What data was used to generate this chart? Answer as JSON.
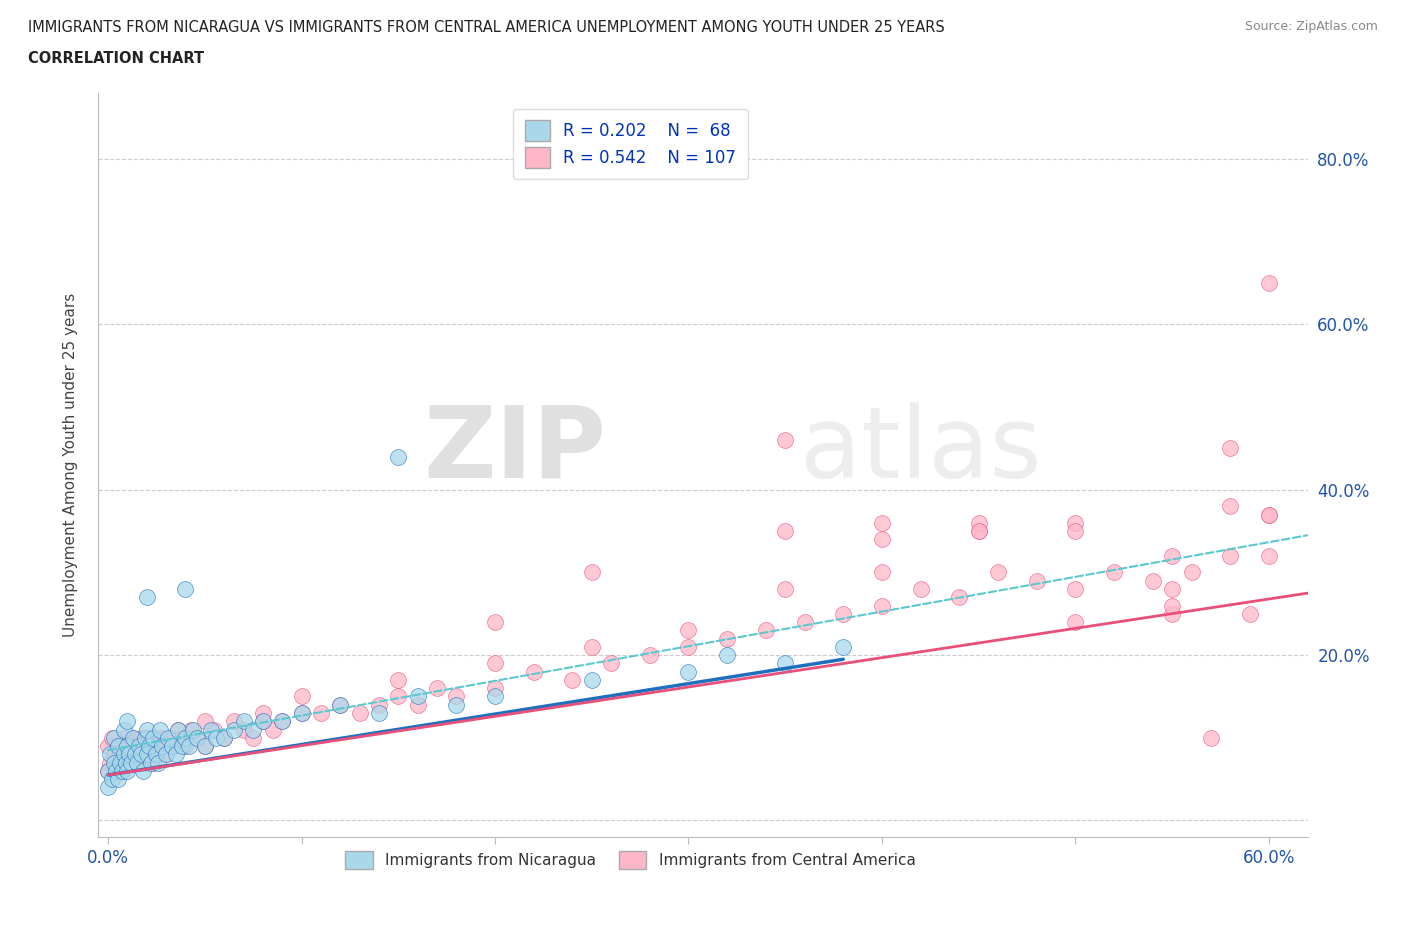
{
  "title_line1": "IMMIGRANTS FROM NICARAGUA VS IMMIGRANTS FROM CENTRAL AMERICA UNEMPLOYMENT AMONG YOUTH UNDER 25 YEARS",
  "title_line2": "CORRELATION CHART",
  "source": "Source: ZipAtlas.com",
  "ylabel": "Unemployment Among Youth under 25 years",
  "xlim": [
    -0.005,
    0.62
  ],
  "ylim": [
    -0.02,
    0.88
  ],
  "xticks": [
    0.0,
    0.1,
    0.2,
    0.3,
    0.4,
    0.5,
    0.6
  ],
  "ytick_positions": [
    0.0,
    0.2,
    0.4,
    0.6,
    0.8
  ],
  "legend_R1": "R = 0.202",
  "legend_N1": "N =  68",
  "legend_R2": "R = 0.542",
  "legend_N2": "N = 107",
  "color_nicaragua": "#A8D8EA",
  "color_nicaragua_line": "#1F6FBF",
  "color_central": "#FFB6C8",
  "color_central_line": "#E8507A",
  "color_dashed_line": "#5BC8D0",
  "watermark_zip": "ZIP",
  "watermark_atlas": "atlas",
  "background_color": "#FFFFFF",
  "nic_line_x": [
    0.0,
    0.38
  ],
  "nic_line_y": [
    0.055,
    0.195
  ],
  "cent_line_x": [
    0.0,
    0.62
  ],
  "cent_line_y": [
    0.055,
    0.275
  ],
  "dash_line_x": [
    0.0,
    0.62
  ],
  "dash_line_y": [
    0.085,
    0.345
  ],
  "scatter_nic_x": [
    0.0,
    0.0,
    0.001,
    0.002,
    0.003,
    0.003,
    0.004,
    0.005,
    0.005,
    0.006,
    0.007,
    0.008,
    0.008,
    0.009,
    0.01,
    0.01,
    0.01,
    0.011,
    0.012,
    0.013,
    0.014,
    0.015,
    0.016,
    0.017,
    0.018,
    0.019,
    0.02,
    0.02,
    0.021,
    0.022,
    0.023,
    0.025,
    0.026,
    0.027,
    0.028,
    0.03,
    0.031,
    0.033,
    0.035,
    0.036,
    0.038,
    0.04,
    0.042,
    0.044,
    0.046,
    0.05,
    0.053,
    0.056,
    0.06,
    0.065,
    0.07,
    0.075,
    0.08,
    0.09,
    0.1,
    0.12,
    0.14,
    0.16,
    0.18,
    0.2,
    0.25,
    0.3,
    0.32,
    0.35,
    0.38,
    0.15,
    0.02,
    0.04
  ],
  "scatter_nic_y": [
    0.04,
    0.06,
    0.08,
    0.05,
    0.07,
    0.1,
    0.06,
    0.05,
    0.09,
    0.07,
    0.06,
    0.08,
    0.11,
    0.07,
    0.06,
    0.09,
    0.12,
    0.08,
    0.07,
    0.1,
    0.08,
    0.07,
    0.09,
    0.08,
    0.06,
    0.1,
    0.08,
    0.11,
    0.09,
    0.07,
    0.1,
    0.08,
    0.07,
    0.11,
    0.09,
    0.08,
    0.1,
    0.09,
    0.08,
    0.11,
    0.09,
    0.1,
    0.09,
    0.11,
    0.1,
    0.09,
    0.11,
    0.1,
    0.1,
    0.11,
    0.12,
    0.11,
    0.12,
    0.12,
    0.13,
    0.14,
    0.13,
    0.15,
    0.14,
    0.15,
    0.17,
    0.18,
    0.2,
    0.19,
    0.21,
    0.44,
    0.27,
    0.28
  ],
  "scatter_cent_x": [
    0.0,
    0.0,
    0.001,
    0.002,
    0.003,
    0.004,
    0.005,
    0.006,
    0.007,
    0.008,
    0.009,
    0.01,
    0.011,
    0.012,
    0.013,
    0.014,
    0.015,
    0.016,
    0.017,
    0.018,
    0.019,
    0.02,
    0.021,
    0.022,
    0.023,
    0.025,
    0.027,
    0.029,
    0.03,
    0.032,
    0.034,
    0.036,
    0.038,
    0.04,
    0.043,
    0.046,
    0.05,
    0.055,
    0.06,
    0.065,
    0.07,
    0.075,
    0.08,
    0.085,
    0.09,
    0.1,
    0.11,
    0.12,
    0.13,
    0.14,
    0.15,
    0.16,
    0.17,
    0.18,
    0.2,
    0.22,
    0.24,
    0.26,
    0.28,
    0.3,
    0.32,
    0.34,
    0.36,
    0.38,
    0.4,
    0.42,
    0.44,
    0.46,
    0.48,
    0.5,
    0.52,
    0.54,
    0.55,
    0.56,
    0.58,
    0.6,
    0.4,
    0.45,
    0.5,
    0.55,
    0.58,
    0.6,
    0.35,
    0.4,
    0.45,
    0.5,
    0.55,
    0.57,
    0.59,
    0.6,
    0.05,
    0.08,
    0.1,
    0.15,
    0.2,
    0.25,
    0.3,
    0.35,
    0.4,
    0.45,
    0.5,
    0.55,
    0.58,
    0.6,
    0.2,
    0.25,
    0.35
  ],
  "scatter_cent_y": [
    0.06,
    0.09,
    0.07,
    0.1,
    0.08,
    0.07,
    0.09,
    0.08,
    0.06,
    0.1,
    0.08,
    0.07,
    0.09,
    0.08,
    0.1,
    0.07,
    0.09,
    0.08,
    0.1,
    0.09,
    0.07,
    0.08,
    0.1,
    0.09,
    0.07,
    0.08,
    0.1,
    0.09,
    0.08,
    0.1,
    0.09,
    0.11,
    0.1,
    0.09,
    0.11,
    0.1,
    0.09,
    0.11,
    0.1,
    0.12,
    0.11,
    0.1,
    0.12,
    0.11,
    0.12,
    0.13,
    0.13,
    0.14,
    0.13,
    0.14,
    0.15,
    0.14,
    0.16,
    0.15,
    0.16,
    0.18,
    0.17,
    0.19,
    0.2,
    0.21,
    0.22,
    0.23,
    0.24,
    0.25,
    0.26,
    0.28,
    0.27,
    0.3,
    0.29,
    0.28,
    0.3,
    0.29,
    0.32,
    0.3,
    0.32,
    0.32,
    0.36,
    0.35,
    0.36,
    0.25,
    0.38,
    0.37,
    0.35,
    0.34,
    0.36,
    0.35,
    0.26,
    0.1,
    0.25,
    0.37,
    0.12,
    0.13,
    0.15,
    0.17,
    0.19,
    0.21,
    0.23,
    0.28,
    0.3,
    0.35,
    0.24,
    0.28,
    0.45,
    0.65,
    0.24,
    0.3,
    0.46
  ]
}
